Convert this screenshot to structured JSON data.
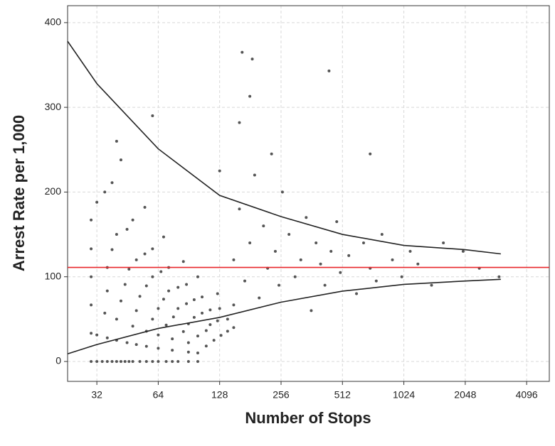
{
  "chart_data": {
    "type": "scatter",
    "xlabel": "Number of Stops",
    "ylabel": "Arrest Rate per 1,000",
    "xlog": 2,
    "grid": true,
    "xlim": [
      23,
      5290
    ],
    "ylim": [
      -23.5,
      420
    ],
    "xticks": [
      32,
      64,
      128,
      256,
      512,
      1024,
      2048,
      4096
    ],
    "yticks": [
      0,
      100,
      200,
      300,
      400
    ],
    "hline": 111,
    "hline_color": "#e8262a",
    "point_color": "#555555",
    "x": [
      30,
      32,
      34,
      36,
      38,
      40,
      42,
      44,
      46,
      48,
      52,
      56,
      60,
      64,
      70,
      75,
      80,
      90,
      100,
      30,
      32,
      36,
      40,
      45,
      50,
      56,
      64,
      75,
      90,
      100,
      30,
      35,
      40,
      48,
      56,
      64,
      75,
      90,
      110,
      30,
      36,
      42,
      50,
      60,
      70,
      85,
      100,
      120,
      30,
      36,
      44,
      52,
      64,
      76,
      90,
      110,
      130,
      30,
      38,
      46,
      56,
      68,
      80,
      96,
      115,
      140,
      32,
      40,
      50,
      60,
      72,
      88,
      105,
      125,
      150,
      35,
      45,
      55,
      66,
      80,
      96,
      115,
      140,
      38,
      48,
      60,
      72,
      88,
      105,
      128,
      42,
      55,
      68,
      85,
      100,
      125,
      150,
      150,
      160,
      170,
      180,
      190,
      200,
      210,
      220,
      240,
      250,
      260,
      280,
      300,
      320,
      340,
      360,
      380,
      400,
      420,
      450,
      480,
      500,
      550,
      600,
      650,
      700,
      750,
      800,
      900,
      1000,
      1100,
      1200,
      1400,
      1600,
      2000,
      2400,
      3000,
      60,
      165,
      185,
      180,
      440,
      700,
      160,
      128,
      230,
      40
    ],
    "values": [
      0,
      0,
      0,
      0,
      0,
      0,
      0,
      0,
      0,
      0,
      0,
      0,
      0,
      0,
      0,
      0,
      0,
      0,
      0,
      33.3,
      31.3,
      27.8,
      25,
      22.2,
      20,
      17.9,
      15.6,
      13.3,
      11.1,
      10,
      66.7,
      57.1,
      50,
      41.7,
      35.7,
      31.3,
      26.7,
      22.2,
      18.2,
      100,
      83.3,
      71.4,
      60,
      50,
      42.9,
      35.3,
      30,
      25,
      133,
      111,
      90.9,
      76.9,
      62.5,
      52.6,
      44.4,
      36.4,
      30.8,
      167,
      132,
      109,
      89.3,
      73.5,
      62.5,
      52.1,
      43.5,
      35.7,
      188,
      150,
      120,
      100,
      83.3,
      68.2,
      57.1,
      48,
      40,
      200,
      156,
      127,
      106,
      87.5,
      72.9,
      60.9,
      50,
      211,
      167,
      133,
      111,
      90.9,
      76.2,
      62.5,
      238,
      182,
      147,
      118,
      100,
      80,
      66.7,
      120,
      180,
      95,
      140,
      220,
      75,
      160,
      110,
      130,
      90,
      200,
      150,
      100,
      120,
      170,
      60,
      140,
      115,
      90,
      130,
      165,
      105,
      125,
      80,
      140,
      110,
      95,
      150,
      120,
      100,
      130,
      115,
      90,
      140,
      130,
      110,
      100,
      290,
      365,
      357,
      313,
      343,
      245,
      282,
      225,
      245,
      260
    ],
    "series": [
      {
        "color": "#222222",
        "x": [
          23,
          32,
          64,
          128,
          256,
          512,
          1024,
          2048,
          3060
        ],
        "values": [
          378,
          328,
          251,
          196,
          171,
          150,
          137,
          132,
          127
        ]
      },
      {
        "color": "#222222",
        "x": [
          23,
          32,
          64,
          128,
          256,
          512,
          1024,
          2048,
          3060
        ],
        "values": [
          9,
          20,
          39,
          52,
          70,
          83,
          91,
          95,
          97
        ]
      }
    ]
  }
}
